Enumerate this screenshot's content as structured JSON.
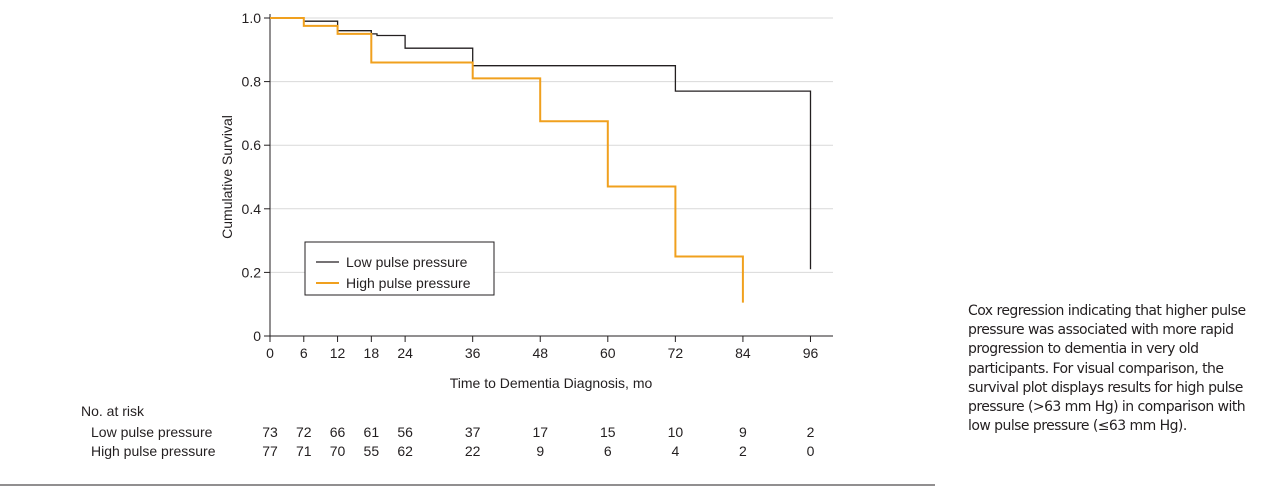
{
  "chart_data": {
    "type": "line",
    "step": true,
    "xlabel": "Time to Dementia Diagnosis, mo",
    "ylabel": "Cumulative Survival",
    "xlim": [
      0,
      100
    ],
    "ylim": [
      0,
      1.0
    ],
    "x_ticks": [
      0,
      6,
      12,
      18,
      24,
      36,
      48,
      60,
      72,
      84,
      96
    ],
    "x_tick_labels": [
      "0",
      "6",
      "12",
      "18",
      "24",
      "36",
      "48",
      "60",
      "72",
      "84",
      "96"
    ],
    "y_ticks": [
      0,
      0.2,
      0.4,
      0.6,
      0.8,
      1.0
    ],
    "y_tick_labels": [
      "0",
      "0.2",
      "0.4",
      "0.6",
      "0.8",
      "1.0"
    ],
    "grid": "horizontal",
    "legend_position": "lower-left",
    "series": [
      {
        "name": "Low pulse pressure",
        "color": "#231f20",
        "points": [
          [
            0,
            1.0
          ],
          [
            6,
            1.0
          ],
          [
            6,
            0.99
          ],
          [
            12,
            0.99
          ],
          [
            12,
            0.96
          ],
          [
            18,
            0.96
          ],
          [
            18,
            0.95
          ],
          [
            19,
            0.95
          ],
          [
            19,
            0.945
          ],
          [
            24,
            0.945
          ],
          [
            24,
            0.905
          ],
          [
            36,
            0.905
          ],
          [
            36,
            0.85
          ],
          [
            72,
            0.85
          ],
          [
            72,
            0.77
          ],
          [
            96,
            0.77
          ],
          [
            96,
            0.21
          ]
        ]
      },
      {
        "name": "High pulse pressure",
        "color": "#f0a01e",
        "points": [
          [
            0,
            1.0
          ],
          [
            6,
            1.0
          ],
          [
            6,
            0.975
          ],
          [
            12,
            0.975
          ],
          [
            12,
            0.95
          ],
          [
            18,
            0.95
          ],
          [
            18,
            0.86
          ],
          [
            36,
            0.86
          ],
          [
            36,
            0.81
          ],
          [
            48,
            0.81
          ],
          [
            48,
            0.675
          ],
          [
            60,
            0.675
          ],
          [
            60,
            0.47
          ],
          [
            72,
            0.47
          ],
          [
            72,
            0.25
          ],
          [
            84,
            0.25
          ],
          [
            84,
            0.105
          ]
        ]
      }
    ],
    "risk_table": {
      "title": "No. at risk",
      "times": [
        0,
        6,
        12,
        18,
        24,
        36,
        48,
        60,
        72,
        84,
        96
      ],
      "rows": [
        {
          "label": "Low pulse pressure",
          "counts": [
            "73",
            "72",
            "66",
            "61",
            "56",
            "37",
            "17",
            "15",
            "10",
            "9",
            "2"
          ]
        },
        {
          "label": "High pulse pressure",
          "counts": [
            "77",
            "71",
            "70",
            "55",
            "62",
            "22",
            "9",
            "6",
            "4",
            "2",
            "0"
          ]
        }
      ]
    }
  },
  "caption": "Cox regression indicating that higher pulse pressure was associated with more rapid progression to dementia in very old participants. For visual comparison, the survival plot displays results for high pulse pressure (>63 mm Hg) in comparison with low pulse pressure (≤63 mm Hg)."
}
